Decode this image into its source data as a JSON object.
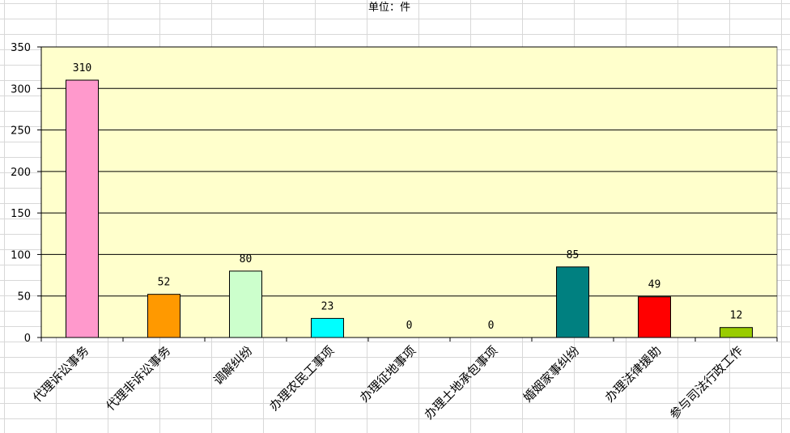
{
  "chart_data": {
    "type": "bar",
    "title": "单位：件",
    "categories": [
      "代理诉讼事务",
      "代理非诉讼事务",
      "调解纠纷",
      "办理农民工事项",
      "办理征地事项",
      "办理土地承包事项",
      "婚姻家事纠纷",
      "办理法律援助",
      "参与司法行政工作"
    ],
    "values": [
      310,
      52,
      80,
      23,
      0,
      0,
      85,
      49,
      12
    ],
    "colors": [
      "#FF99CC",
      "#FF9900",
      "#CCFFCC",
      "#00FFFF",
      "#FFFF99",
      "#FFFF99",
      "#008080",
      "#FF0000",
      "#99CC00"
    ],
    "plot_background": "#FFFFCC",
    "ylim": [
      0,
      350
    ],
    "yticks": [
      0,
      50,
      100,
      150,
      200,
      250,
      300,
      350
    ],
    "grid": true,
    "xlabel": "",
    "ylabel": ""
  }
}
